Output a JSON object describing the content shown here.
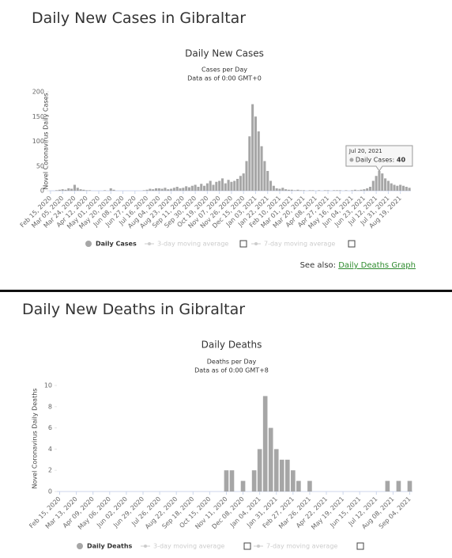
{
  "sections": [
    {
      "heading": "Daily New Cases in Gibraltar",
      "see_also": "See also:",
      "link": "Daily Deaths Graph"
    },
    {
      "heading": "Daily New Deaths in Gibraltar"
    }
  ],
  "chart_data": [
    {
      "type": "bar",
      "title": "Daily New Cases",
      "subtitle": "Cases per Day",
      "note": "Data as of 0:00 GMT+0",
      "y_label": "Novel Coronavirus Daily Cases",
      "categories": [
        "Feb 15, 2020",
        null,
        null,
        null,
        "Mar 05, 2020",
        null,
        null,
        null,
        "Mar 24, 2020",
        null,
        null,
        null,
        "Apr 12, 2020",
        null,
        null,
        null,
        "May 01, 2020",
        null,
        null,
        null,
        "May 20, 2020",
        null,
        null,
        null,
        "Jun 08, 2020",
        null,
        null,
        null,
        "Jun 27, 2020",
        null,
        null,
        null,
        "Jul 16, 2020",
        null,
        null,
        null,
        "Aug 04, 2020",
        null,
        null,
        null,
        "Aug 23, 2020",
        null,
        null,
        null,
        "Sep 11, 2020",
        null,
        null,
        null,
        "Sep 30, 2020",
        null,
        null,
        null,
        "Oct 19, 2020",
        null,
        null,
        null,
        "Nov 07, 2020",
        null,
        null,
        null,
        "Nov 26, 2020",
        null,
        null,
        null,
        "Dec 15, 2020",
        null,
        null,
        null,
        "Jan 03, 2021",
        null,
        null,
        null,
        "Jan 22, 2021",
        null,
        null,
        null,
        "Feb 10, 2021",
        null,
        null,
        null,
        "Mar 01, 2021",
        null,
        null,
        null,
        "Mar 20, 2021",
        null,
        null,
        null,
        "Apr 08, 2021",
        null,
        null,
        null,
        "Apr 27, 2021",
        null,
        null,
        null,
        "May 16, 2021",
        null,
        null,
        null,
        "Jun 04, 2021",
        null,
        null,
        null,
        "Jun 23, 2021",
        null,
        null,
        null,
        "Jul 12, 2021",
        null,
        null,
        null,
        "Jul 31, 2021",
        null,
        null,
        null,
        "Aug 19, 2021",
        null,
        null,
        null
      ],
      "series": [
        {
          "name": "Daily Cases",
          "color": "#a6a6a6",
          "values": [
            0,
            0,
            1,
            2,
            3,
            2,
            5,
            4,
            12,
            6,
            3,
            2,
            1,
            1,
            0,
            0,
            0,
            0,
            1,
            0,
            5,
            2,
            0,
            0,
            0,
            0,
            0,
            0,
            0,
            0,
            0,
            1,
            2,
            4,
            3,
            5,
            5,
            4,
            6,
            3,
            4,
            6,
            8,
            5,
            6,
            9,
            7,
            10,
            12,
            8,
            14,
            10,
            15,
            20,
            12,
            18,
            20,
            25,
            15,
            22,
            18,
            20,
            24,
            30,
            35,
            60,
            110,
            175,
            150,
            120,
            90,
            60,
            40,
            20,
            10,
            5,
            4,
            6,
            3,
            2,
            2,
            1,
            2,
            1,
            1,
            0,
            1,
            1,
            0,
            1,
            0,
            1,
            1,
            0,
            1,
            1,
            1,
            0,
            1,
            0,
            1,
            2,
            1,
            2,
            3,
            5,
            8,
            20,
            30,
            40,
            35,
            25,
            20,
            15,
            12,
            10,
            12,
            10,
            8,
            6
          ]
        }
      ],
      "legend_extra": [
        "3-day moving average",
        "7-day moving average"
      ],
      "ylim": [
        0,
        200
      ],
      "yticks": [
        0,
        50,
        100,
        150,
        200
      ],
      "grid": false,
      "tooltip": {
        "date": "Jul 20, 2021",
        "label": "Daily Cases:",
        "value": 40
      }
    },
    {
      "type": "bar",
      "title": "Daily Deaths",
      "subtitle": "Deaths per Day",
      "note": "Data as of 0:00 GMT+8",
      "y_label": "Novel Coronavirus Daily Deaths",
      "categories": [
        "Feb 15, 2020",
        null,
        null,
        "Mar 13, 2020",
        null,
        null,
        "Apr 09, 2020",
        null,
        null,
        "May 06, 2020",
        null,
        null,
        "Jun 02, 2020",
        null,
        null,
        "Jun 29, 2020",
        null,
        null,
        "Jul 26, 2020",
        null,
        null,
        "Aug 22, 2020",
        null,
        null,
        "Sep 18, 2020",
        null,
        null,
        "Oct 15, 2020",
        null,
        null,
        "Nov 11, 2020",
        null,
        null,
        "Dec 08, 2020",
        null,
        null,
        "Jan 04, 2021",
        null,
        null,
        "Jan 31, 2021",
        null,
        null,
        "Feb 27, 2021",
        null,
        null,
        "Mar 26, 2021",
        null,
        null,
        "Apr 22, 2021",
        null,
        null,
        "May 19, 2021",
        null,
        null,
        "Jun 15, 2021",
        null,
        null,
        "Jul 12, 2021",
        null,
        null,
        "Aug 08, 2021",
        null,
        null,
        "Sep 04, 2021"
      ],
      "series": [
        {
          "name": "Daily Deaths",
          "color": "#a6a6a6",
          "values": [
            0,
            0,
            0,
            0,
            0,
            0,
            0,
            0,
            0,
            0,
            0,
            0,
            0,
            0,
            0,
            0,
            0,
            0,
            0,
            0,
            0,
            0,
            0,
            0,
            0,
            0,
            0,
            0,
            0,
            0,
            2,
            2,
            0,
            1,
            0,
            2,
            4,
            9,
            6,
            4,
            3,
            3,
            2,
            1,
            0,
            1,
            0,
            0,
            0,
            0,
            0,
            0,
            0,
            0,
            0,
            0,
            0,
            0,
            0,
            1,
            0,
            1,
            0,
            1
          ]
        }
      ],
      "legend_extra": [
        "3-day moving average",
        "7-day moving average"
      ],
      "ylim": [
        0,
        10
      ],
      "yticks": [
        0,
        2,
        4,
        6,
        8,
        10
      ],
      "grid": false
    }
  ]
}
